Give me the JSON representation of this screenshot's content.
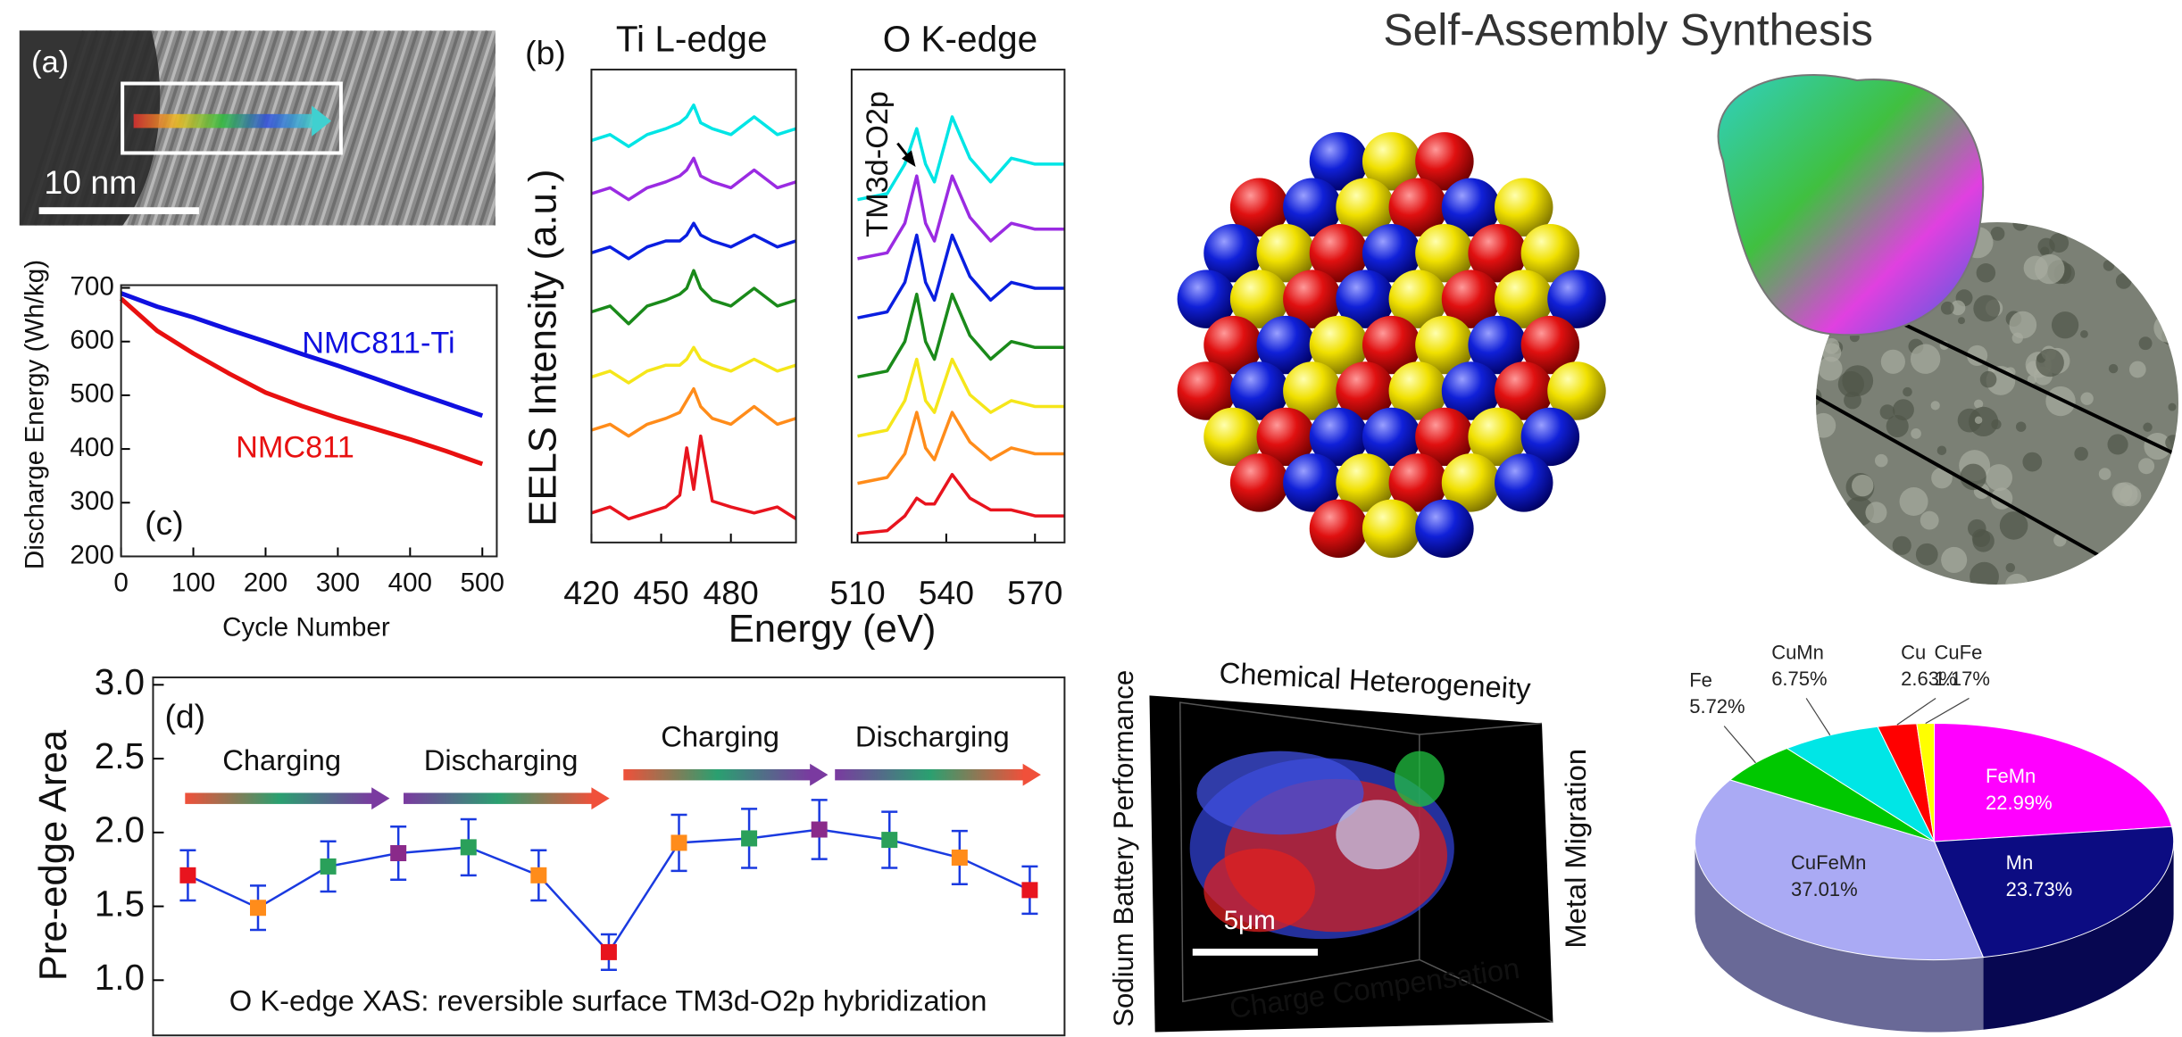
{
  "figure": {
    "panel_a": "(a)",
    "scale_a": "10 nm",
    "title": "Self-Assembly Synthesis",
    "tomography": {
      "top": "Chemical Heterogeneity",
      "right": "Metal Migration",
      "left": "Sodium Battery Performance",
      "bottom": "Charge Compensation",
      "scale": "5μm"
    }
  },
  "chart_data": [
    {
      "type": "line",
      "panel": "(b)",
      "title": "Ti L-edge",
      "ylabel": "EELS Intensity (a.u.)",
      "xlabel": "Energy (eV)",
      "x": [
        420,
        428,
        436,
        444,
        452,
        458,
        461,
        464,
        467,
        472,
        480,
        490,
        500,
        508
      ],
      "xlim": [
        420,
        508
      ],
      "xticks": [
        420,
        450,
        480
      ],
      "ylim": [
        0,
        8
      ],
      "series": [
        {
          "color": "#00e5e5",
          "values": [
            6.8,
            6.9,
            6.7,
            6.9,
            7.0,
            7.1,
            7.2,
            7.4,
            7.1,
            7.0,
            6.9,
            7.2,
            6.9,
            7.0
          ]
        },
        {
          "color": "#9a2be2",
          "values": [
            5.9,
            6.0,
            5.8,
            6.0,
            6.1,
            6.2,
            6.3,
            6.5,
            6.2,
            6.1,
            6.0,
            6.3,
            6.0,
            6.1
          ]
        },
        {
          "color": "#0a1ee0",
          "values": [
            4.9,
            5.0,
            4.8,
            5.0,
            5.1,
            5.1,
            5.2,
            5.4,
            5.2,
            5.1,
            5.0,
            5.2,
            5.0,
            5.1
          ]
        },
        {
          "color": "#1a8a1a",
          "values": [
            3.9,
            4.0,
            3.7,
            4.0,
            4.1,
            4.2,
            4.3,
            4.6,
            4.3,
            4.1,
            4.0,
            4.3,
            4.0,
            4.1
          ]
        },
        {
          "color": "#f5e61a",
          "values": [
            2.8,
            2.9,
            2.7,
            2.9,
            3.0,
            3.0,
            3.1,
            3.3,
            3.1,
            3.0,
            2.9,
            3.1,
            2.9,
            3.0
          ]
        },
        {
          "color": "#ff8c1a",
          "values": [
            1.9,
            2.0,
            1.8,
            2.0,
            2.1,
            2.2,
            2.4,
            2.6,
            2.3,
            2.1,
            2.0,
            2.3,
            2.0,
            2.1
          ]
        },
        {
          "color": "#e8141e",
          "values": [
            0.5,
            0.6,
            0.4,
            0.5,
            0.6,
            0.8,
            1.6,
            0.9,
            1.8,
            0.7,
            0.6,
            0.5,
            0.6,
            0.4
          ]
        }
      ]
    },
    {
      "type": "line",
      "title": "O K-edge",
      "annotation": "TM3d-O2p",
      "x": [
        510,
        520,
        526,
        530,
        533,
        536,
        542,
        548,
        555,
        562,
        570,
        580
      ],
      "xlim": [
        508,
        580
      ],
      "xticks": [
        510,
        540,
        570
      ],
      "ylim": [
        0,
        8
      ],
      "series": [
        {
          "color": "#00e5e5",
          "values": [
            5.8,
            5.9,
            6.4,
            7.0,
            6.4,
            6.1,
            7.2,
            6.5,
            6.1,
            6.5,
            6.4,
            6.4
          ]
        },
        {
          "color": "#9a2be2",
          "values": [
            4.8,
            4.9,
            5.4,
            6.2,
            5.4,
            5.1,
            6.2,
            5.5,
            5.1,
            5.4,
            5.3,
            5.3
          ]
        },
        {
          "color": "#0a1ee0",
          "values": [
            3.8,
            3.9,
            4.4,
            5.2,
            4.4,
            4.1,
            5.2,
            4.5,
            4.1,
            4.4,
            4.3,
            4.3
          ]
        },
        {
          "color": "#1a8a1a",
          "values": [
            2.8,
            2.9,
            3.4,
            4.2,
            3.4,
            3.1,
            4.2,
            3.5,
            3.1,
            3.4,
            3.3,
            3.3
          ]
        },
        {
          "color": "#f5e61a",
          "values": [
            1.8,
            1.9,
            2.4,
            3.1,
            2.4,
            2.2,
            3.1,
            2.5,
            2.2,
            2.4,
            2.3,
            2.3
          ]
        },
        {
          "color": "#ff8c1a",
          "values": [
            1.0,
            1.1,
            1.5,
            2.2,
            1.6,
            1.4,
            2.2,
            1.7,
            1.4,
            1.6,
            1.5,
            1.5
          ]
        },
        {
          "color": "#e8141e",
          "values": [
            0.15,
            0.2,
            0.45,
            0.75,
            0.65,
            0.65,
            1.15,
            0.75,
            0.55,
            0.55,
            0.45,
            0.45
          ]
        }
      ]
    },
    {
      "type": "line",
      "panel": "(c)",
      "ylabel": "Discharge Energy (Wh/kg)",
      "xlabel": "Cycle Number",
      "x": [
        0,
        50,
        100,
        150,
        200,
        250,
        300,
        350,
        400,
        450,
        500
      ],
      "xlim": [
        0,
        520
      ],
      "xticks": [
        0,
        100,
        200,
        300,
        400,
        500
      ],
      "ylim": [
        200,
        705
      ],
      "yticks": [
        200,
        300,
        400,
        500,
        600,
        700
      ],
      "series": [
        {
          "name": "NMC811-Ti",
          "color": "#1010e0",
          "values": [
            690,
            665,
            645,
            622,
            600,
            577,
            555,
            532,
            508,
            485,
            462
          ]
        },
        {
          "name": "NMC811",
          "color": "#e81010",
          "values": [
            680,
            620,
            578,
            540,
            505,
            480,
            458,
            438,
            418,
            396,
            372
          ]
        }
      ]
    },
    {
      "type": "errorbar",
      "panel": "(d)",
      "ylabel": "Pre-edge Area",
      "annotation": "O K-edge XAS: reversible surface TM3d-O2p hybridization",
      "phase_labels": [
        "Charging",
        "Discharging",
        "Charging",
        "Discharging"
      ],
      "values": [
        1.71,
        1.49,
        1.77,
        1.86,
        1.9,
        1.71,
        1.19,
        1.93,
        1.96,
        2.02,
        1.95,
        1.83,
        1.61
      ],
      "errors": [
        0.17,
        0.15,
        0.17,
        0.18,
        0.19,
        0.17,
        0.12,
        0.19,
        0.2,
        0.2,
        0.19,
        0.18,
        0.16
      ],
      "colors": [
        "#e8141e",
        "#ff8c1a",
        "#2aa05a",
        "#8a2a8a",
        "#2aa05a",
        "#ff8c1a",
        "#e8141e",
        "#ff8c1a",
        "#2aa05a",
        "#8a2a8a",
        "#2aa05a",
        "#ff8c1a",
        "#e8141e"
      ],
      "line_color": "#1a3ae0",
      "ylim": [
        0.62,
        3.05
      ],
      "yticks": [
        {
          "value": 1,
          "label": "1.0"
        },
        1.5,
        {
          "value": 2,
          "label": "2.0"
        },
        2.5,
        {
          "value": 3,
          "label": "3.0"
        }
      ]
    },
    {
      "type": "pie",
      "categories": [
        "FeMn",
        "Mn",
        "CuFeMn",
        "Fe",
        "CuMn",
        "Cu",
        "CuFe"
      ],
      "values": [
        22.99,
        23.73,
        37.01,
        5.72,
        6.75,
        2.63,
        1.17
      ],
      "value_labels": [
        "22.99%",
        "23.73%",
        "37.01%",
        "5.72%",
        "6.75%",
        "2.63%",
        "1.17%"
      ],
      "colors": [
        "#ff00ff",
        "#0c0c82",
        "#aaaaf4",
        "#00c800",
        "#00e6e6",
        "#ff0000",
        "#ffff00"
      ]
    }
  ]
}
